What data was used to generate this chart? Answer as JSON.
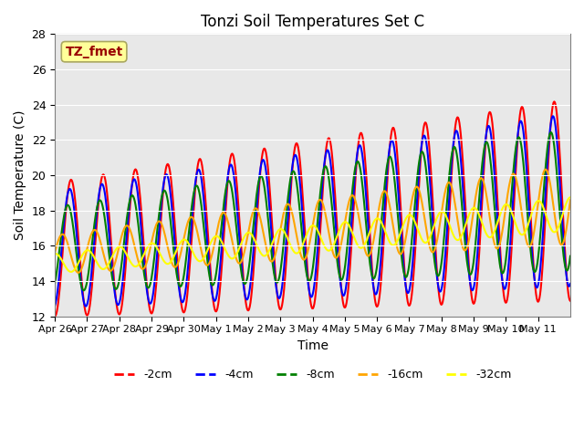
{
  "title": "Tonzi Soil Temperatures Set C",
  "xlabel": "Time",
  "ylabel": "Soil Temperature (C)",
  "ylim": [
    12,
    28
  ],
  "plot_bg_color": "#e8e8e8",
  "annotation_text": "TZ_fmet",
  "annotation_color": "#990000",
  "annotation_bg": "#ffff99",
  "tick_labels": [
    "Apr 26",
    "Apr 27",
    "Apr 28",
    "Apr 29",
    "Apr 30",
    "May 1",
    "May 2",
    "May 3",
    "May 4",
    "May 5",
    "May 6",
    "May 7",
    "May 8",
    "May 9",
    "May 10",
    "May 11"
  ],
  "yticks": [
    12,
    14,
    16,
    18,
    20,
    22,
    24,
    26,
    28
  ],
  "legend_labels": [
    "-2cm",
    "-4cm",
    "-8cm",
    "-16cm",
    "-32cm"
  ],
  "legend_colors": [
    "red",
    "blue",
    "green",
    "orange",
    "yellow"
  ],
  "line_width": 1.5
}
